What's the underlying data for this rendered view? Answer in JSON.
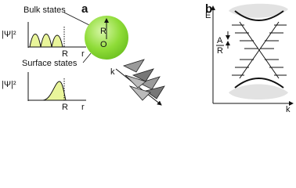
{
  "panel_a": {
    "label": "a",
    "bulk": {
      "title": "Bulk states",
      "ylabel": "|Ψ|²",
      "r_label": "R",
      "x_label": "r"
    },
    "surface": {
      "title": "Surface states",
      "ylabel": "|Ψ|²",
      "r_label": "R",
      "x_label": "r"
    },
    "sphere": {
      "radius_label": "R",
      "center_label": "O"
    },
    "helix_label": "k"
  },
  "panel_b": {
    "label": "b",
    "y_label": "E",
    "x_label": "k",
    "fraction_top": "A",
    "fraction_bottom": "R"
  }
}
